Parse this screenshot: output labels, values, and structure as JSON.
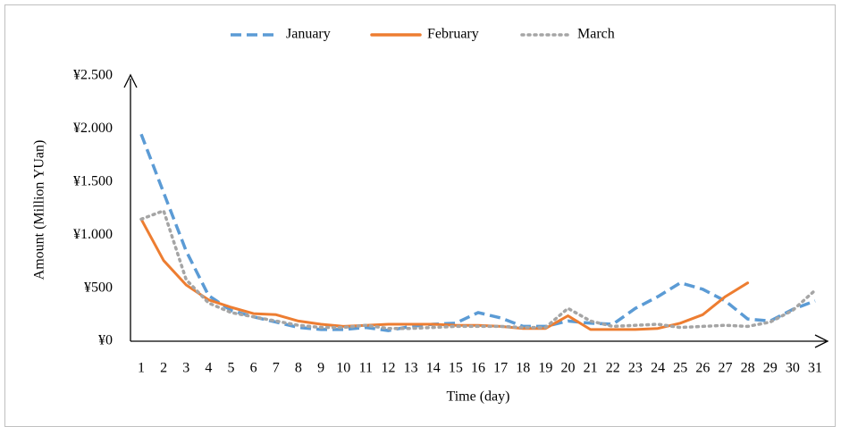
{
  "chart_data": {
    "type": "line",
    "xlabel": "Time (day)",
    "ylabel": "Amount (Million YUan)",
    "categories": [
      "1",
      "2",
      "3",
      "4",
      "5",
      "6",
      "7",
      "8",
      "9",
      "10",
      "11",
      "12",
      "13",
      "14",
      "15",
      "16",
      "17",
      "18",
      "19",
      "20",
      "21",
      "22",
      "23",
      "24",
      "25",
      "26",
      "27",
      "28",
      "29",
      "30",
      "31"
    ],
    "series": [
      {
        "name": "January",
        "color": "#5b9bd5",
        "style": "dashed",
        "values": [
          1950,
          1400,
          850,
          430,
          290,
          230,
          180,
          130,
          110,
          110,
          130,
          100,
          140,
          160,
          170,
          270,
          220,
          140,
          140,
          190,
          170,
          160,
          310,
          420,
          550,
          490,
          380,
          210,
          190,
          300,
          380
        ]
      },
      {
        "name": "February",
        "color": "#ed7d31",
        "style": "solid",
        "values": [
          1150,
          760,
          530,
          390,
          320,
          260,
          250,
          190,
          160,
          140,
          150,
          160,
          160,
          160,
          150,
          150,
          140,
          120,
          120,
          240,
          110,
          110,
          110,
          120,
          170,
          250,
          420,
          550,
          null,
          null,
          null
        ]
      },
      {
        "name": "March",
        "color": "#a5a5a5",
        "style": "dotted",
        "values": [
          1150,
          1230,
          580,
          360,
          270,
          230,
          190,
          150,
          130,
          130,
          150,
          120,
          120,
          130,
          140,
          140,
          140,
          130,
          130,
          310,
          190,
          140,
          150,
          160,
          130,
          140,
          150,
          140,
          180,
          290,
          480
        ]
      }
    ],
    "ylim": [
      0,
      2500
    ],
    "yticks": [
      {
        "value": 0,
        "label": "¥0"
      },
      {
        "value": 500,
        "label": "¥500"
      },
      {
        "value": 1000,
        "label": "¥1.000"
      },
      {
        "value": 1500,
        "label": "¥1.500"
      },
      {
        "value": 2000,
        "label": "¥2.000"
      },
      {
        "value": 2500,
        "label": "¥2.500"
      }
    ],
    "grid": false,
    "legend": "top"
  }
}
